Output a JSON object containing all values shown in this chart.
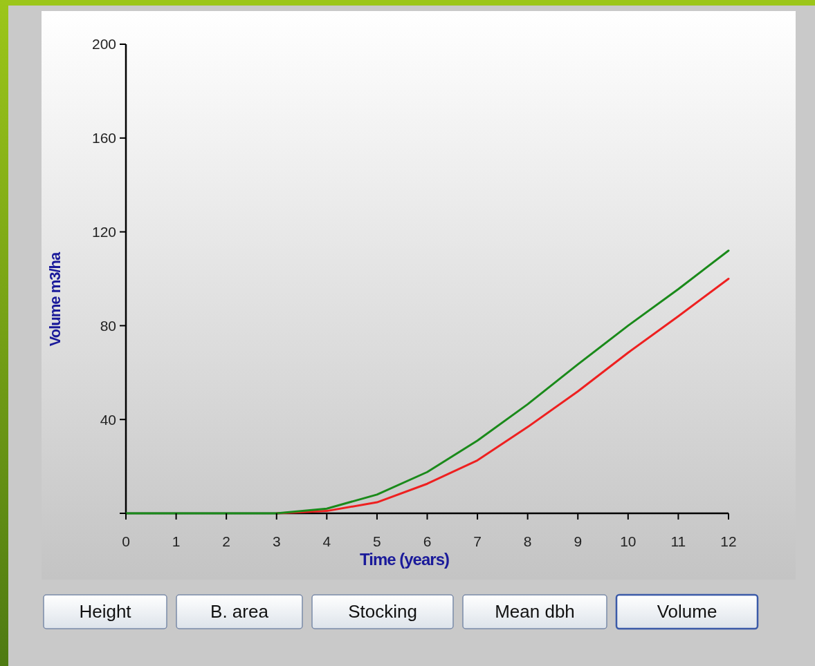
{
  "chart_data": {
    "type": "line",
    "xlabel": "Time (years)",
    "ylabel": "Volume m3/ha",
    "x": [
      0,
      1,
      2,
      3,
      4,
      5,
      6,
      7,
      8,
      9,
      10,
      11,
      12
    ],
    "series": [
      {
        "color": "#ee2020",
        "values": [
          null,
          null,
          null,
          0,
          1,
          4.7,
          12.6,
          22.6,
          36.8,
          52,
          68.5,
          84,
          100
        ]
      },
      {
        "color": "#1a8a1a",
        "values": [
          0,
          0,
          0,
          0,
          2,
          8,
          17.6,
          31,
          46.5,
          63.5,
          80,
          95.6,
          112
        ]
      }
    ],
    "xlim": [
      0,
      12
    ],
    "xticks": [
      0,
      1,
      2,
      3,
      4,
      5,
      6,
      7,
      8,
      9,
      10,
      11,
      12
    ],
    "ylim": [
      0,
      200
    ],
    "yticks": [
      {
        "value": 0,
        "label": null
      },
      40,
      80,
      120,
      160,
      200
    ],
    "grid": false,
    "marker": "none",
    "line_style": "solid",
    "annotations": [
      "Height",
      "B. area",
      "Stocking",
      "Mean dbh",
      "Volume"
    ]
  }
}
